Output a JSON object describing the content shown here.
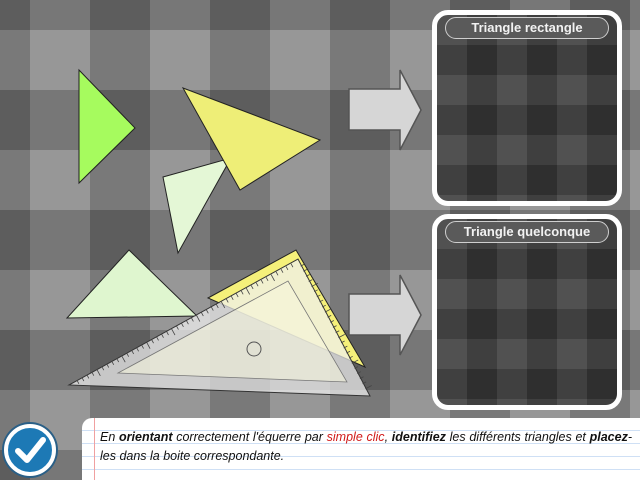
{
  "boxes": [
    {
      "title": "Triangle rectangle"
    },
    {
      "title": "Triangle quelconque"
    }
  ],
  "instruction": {
    "t1": "En ",
    "b1": "orientant",
    "t2": " correctement l'équerre par ",
    "red": "simple clic",
    "t3": ", ",
    "b2": "identifiez",
    "t4": " les différents triangles et ",
    "b3": "placez",
    "t5": "-les dans la boite correspondante."
  },
  "colors": {
    "triangle_green": "#a6fb5e",
    "triangle_yellow": "#eeee77",
    "triangle_pale_green": "#e4f7d6",
    "triangle_pale_green_2": "#dff6cf",
    "square_ruler_yellow": "#f5f07a",
    "check_button": "#1d79b5"
  },
  "icons": {
    "arrow": "right-arrow-icon",
    "check": "checkmark-icon"
  }
}
